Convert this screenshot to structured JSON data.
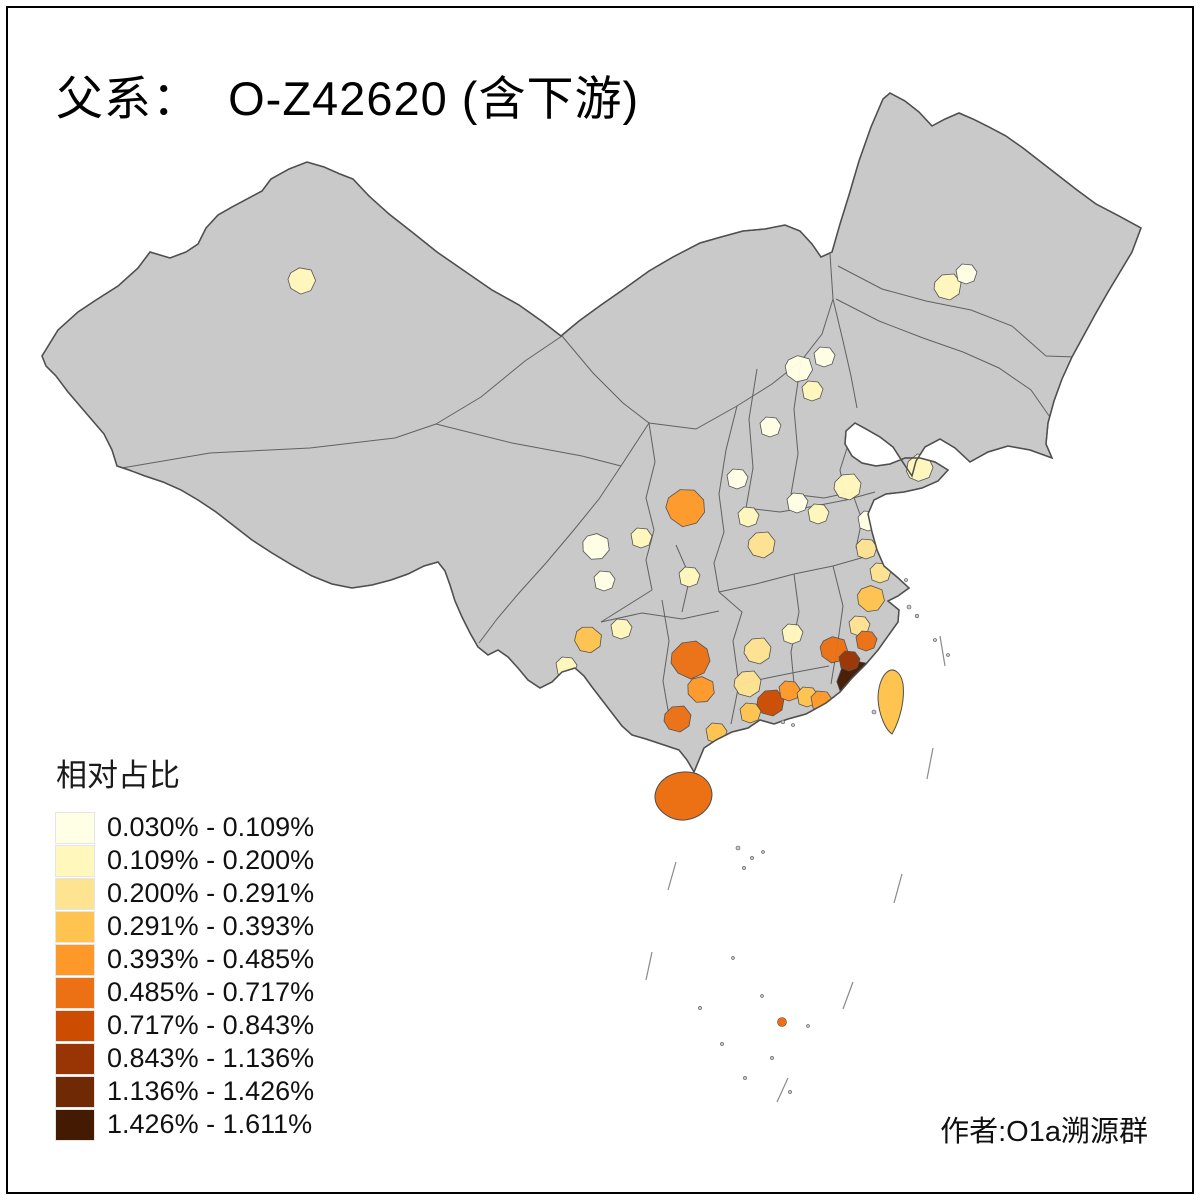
{
  "title": "父系：  O-Z42620 (含下游)",
  "legend_title": "相对占比",
  "attribution": "作者:O1a溯源群",
  "map_style": {
    "sea": "#FFFFFF",
    "land": "#C9C9C9",
    "boundary": "#4F4F4F"
  },
  "chart_data": {
    "type": "choropleth",
    "metric_label": "相对占比",
    "bins": [
      {
        "range": "0.030% - 0.109%",
        "color": "#FFFFE5"
      },
      {
        "range": "0.109% - 0.200%",
        "color": "#FFF7BC"
      },
      {
        "range": "0.200% - 0.291%",
        "color": "#FEE391"
      },
      {
        "range": "0.291% - 0.393%",
        "color": "#FEC44F"
      },
      {
        "range": "0.393% - 0.485%",
        "color": "#FE9929"
      },
      {
        "range": "0.485% - 0.717%",
        "color": "#EC7014"
      },
      {
        "range": "0.717% - 0.843%",
        "color": "#CC4C02"
      },
      {
        "range": "0.843% - 1.136%",
        "color": "#993404"
      },
      {
        "range": "1.136% - 1.426%",
        "color": "#6F2905"
      },
      {
        "range": "1.426% - 1.611%",
        "color": "#451A03"
      }
    ]
  }
}
